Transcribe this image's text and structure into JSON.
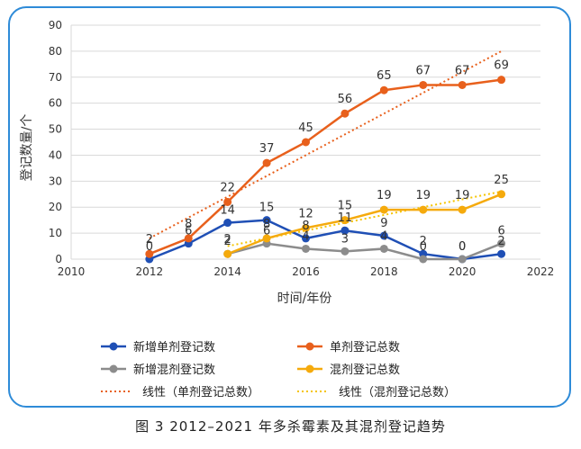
{
  "caption": "图 3 2012–2021 年多杀霉素及其混剂登记趋势",
  "chart_data": {
    "type": "line",
    "xlabel": "时间/年份",
    "ylabel": "登记数量/个",
    "xlim": [
      2010,
      2022
    ],
    "ylim": [
      0,
      90
    ],
    "xticks": [
      2010,
      2012,
      2014,
      2016,
      2018,
      2020,
      2022
    ],
    "yticks": [
      0,
      10,
      20,
      30,
      40,
      50,
      60,
      70,
      80,
      90
    ],
    "grid": "horizontal",
    "legend_position": "bottom",
    "series": [
      {
        "name": "新增单剂登记数",
        "color": "#1f4fb5",
        "x": [
          2012,
          2013,
          2014,
          2015,
          2016,
          2017,
          2018,
          2019,
          2020,
          2021
        ],
        "values": [
          0,
          6,
          14,
          15,
          8,
          11,
          9,
          2,
          0,
          2
        ],
        "labels": [
          "0",
          "6",
          "14",
          "15",
          "8",
          "11",
          "9",
          "2",
          "0",
          "2"
        ]
      },
      {
        "name": "单剂登记总数",
        "color": "#e8601c",
        "x": [
          2012,
          2013,
          2014,
          2015,
          2016,
          2017,
          2018,
          2019,
          2020,
          2021
        ],
        "values": [
          2,
          8,
          22,
          37,
          45,
          56,
          65,
          67,
          67,
          69
        ],
        "labels": [
          "2",
          "8",
          "22",
          "37",
          "45",
          "56",
          "65",
          "67",
          "67",
          "69"
        ]
      },
      {
        "name": "新增混剂登记数",
        "color": "#8c8c8c",
        "x": [
          2014,
          2015,
          2016,
          2017,
          2018,
          2019,
          2020,
          2021
        ],
        "values": [
          2,
          6,
          4,
          3,
          4,
          0,
          0,
          6
        ],
        "labels": [
          "2",
          "6",
          "4",
          "3",
          "4",
          "0",
          "0",
          "6"
        ]
      },
      {
        "name": "混剂登记总数",
        "color": "#f5aa0c",
        "x": [
          2014,
          2015,
          2016,
          2017,
          2018,
          2019,
          2020,
          2021
        ],
        "values": [
          2,
          8,
          12,
          15,
          19,
          19,
          19,
          25
        ],
        "labels": [
          "2",
          "8",
          "12",
          "15",
          "19",
          "19",
          "19",
          "25"
        ]
      }
    ],
    "trendlines": [
      {
        "name": "线性（单剂登记总数）",
        "color": "#e8601c",
        "x": [
          2012,
          2021
        ],
        "values": [
          8,
          80
        ]
      },
      {
        "name": "线性（混剂登记总数）",
        "color": "#f5c400",
        "x": [
          2014,
          2021
        ],
        "values": [
          5,
          26
        ]
      }
    ]
  }
}
